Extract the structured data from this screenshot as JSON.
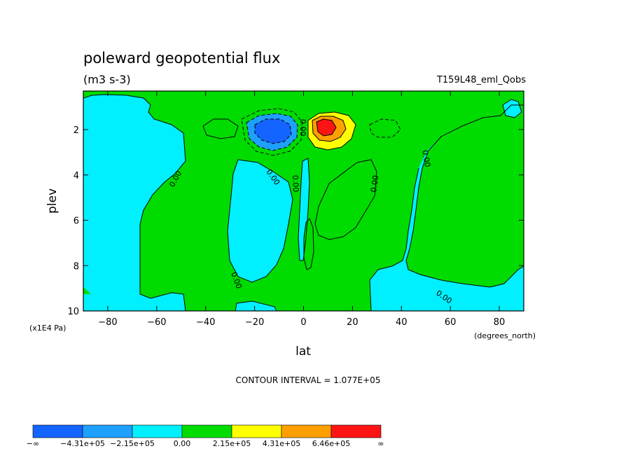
{
  "chart_data": {
    "type": "heatmap",
    "title": "poleward geopotential flux",
    "units": "(m3 s-3)",
    "case_label": "T159L48_eml_Qobs",
    "xlabel": "lat",
    "x_units": "(degrees_north)",
    "ylabel": "plev",
    "y_units": "(x1E4 Pa)",
    "xlim": [
      -90,
      90
    ],
    "ylim": [
      0.3,
      10
    ],
    "y_inverted": true,
    "x_ticks": [
      -80,
      -60,
      -40,
      -20,
      0,
      20,
      40,
      60,
      80
    ],
    "y_ticks": [
      2,
      4,
      6,
      8,
      10
    ],
    "contour_interval_text": "CONTOUR INTERVAL = 1.077E+05",
    "contour_label": "0.00",
    "levels": [
      {
        "label": "-∞",
        "color": "#1464ff"
      },
      {
        "label": "-4.31e+05",
        "color": "#1ea0ff"
      },
      {
        "label": "-2.15e+05",
        "color": "#00f0ff"
      },
      {
        "label": "0.00",
        "color": "#00dc00"
      },
      {
        "label": "2.15e+05",
        "color": "#ffff00"
      },
      {
        "label": "4.31e+05",
        "color": "#ffa000"
      },
      {
        "label": "6.46e+05",
        "color": "#ff1414"
      },
      {
        "label": "∞",
        "color": ""
      }
    ],
    "field_extrema": [
      {
        "name": "southern-minimum",
        "lat": -10,
        "plev": 1.9,
        "value_range": "below -4.31e+05"
      },
      {
        "name": "northern-maximum",
        "lat": 8,
        "plev": 1.8,
        "value_range": "above 6.46e+05"
      }
    ]
  }
}
